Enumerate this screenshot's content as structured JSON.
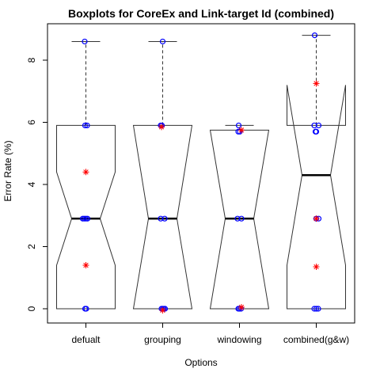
{
  "chart_data": {
    "type": "boxplot",
    "title": "Boxplots for CoreEx and Link-target Id (combined)",
    "xlabel": "Options",
    "ylabel": "Error Rate (%)",
    "ylim": [
      -0.5,
      9.0
    ],
    "yticks": [
      0,
      2,
      4,
      6,
      8
    ],
    "notched": true,
    "grid": false,
    "colors": {
      "box": "#333333",
      "points": "#0000ff",
      "means": "#ff0000"
    },
    "categories": [
      "defualt",
      "grouping",
      "windowing",
      "combined(g&w)"
    ],
    "boxes": [
      {
        "name": "defualt",
        "whisker_low": 0.0,
        "q1": 0.0,
        "median": 2.9,
        "q3": 5.9,
        "whisker_high": 8.6,
        "notch_low": 1.4,
        "notch_high": 4.4
      },
      {
        "name": "grouping",
        "whisker_low": 0.0,
        "q1": 0.0,
        "median": 2.9,
        "q3": 5.9,
        "whisker_high": 8.6,
        "notch_low": 0.0,
        "notch_high": 5.9
      },
      {
        "name": "windowing",
        "whisker_low": 0.0,
        "q1": 0.0,
        "median": 2.9,
        "q3": 5.75,
        "whisker_high": 5.9,
        "notch_low": 0.0,
        "notch_high": 5.75
      },
      {
        "name": "combined(g&w)",
        "whisker_low": 0.0,
        "q1": 0.0,
        "median": 4.3,
        "q3": 5.9,
        "whisker_high": 8.8,
        "notch_low": 1.4,
        "notch_high": 7.2
      }
    ],
    "points": [
      {
        "group": 0,
        "values": [
          8.6,
          5.9,
          5.9,
          2.9,
          2.9,
          2.9,
          2.9,
          0.0,
          0.0
        ],
        "jitter": [
          -0.03,
          -0.02,
          0.03,
          -0.08,
          -0.04,
          0.0,
          0.04,
          -0.02,
          0.01
        ]
      },
      {
        "group": 1,
        "values": [
          8.6,
          5.9,
          5.9,
          2.9,
          2.9,
          0.0,
          0.0,
          0.0,
          0.0
        ],
        "jitter": [
          0.0,
          -0.05,
          -0.02,
          -0.05,
          0.05,
          -0.03,
          0.0,
          0.03,
          0.06
        ]
      },
      {
        "group": 2,
        "values": [
          5.9,
          5.7,
          5.7,
          2.9,
          2.9,
          0.0,
          0.0,
          0.0
        ],
        "jitter": [
          -0.02,
          -0.03,
          0.01,
          -0.05,
          0.05,
          -0.03,
          0.0,
          0.04
        ]
      },
      {
        "group": 3,
        "values": [
          8.8,
          5.9,
          5.9,
          5.7,
          5.7,
          2.9,
          2.9,
          0.0,
          0.0,
          0.0
        ],
        "jitter": [
          -0.04,
          -0.05,
          0.06,
          -0.02,
          0.0,
          0.0,
          0.06,
          -0.05,
          0.0,
          0.05
        ]
      }
    ],
    "means": [
      {
        "group": 0,
        "values": [
          4.4,
          1.4
        ],
        "jitter": [
          0.0,
          0.0
        ]
      },
      {
        "group": 1,
        "values": [
          5.85,
          -0.05
        ],
        "jitter": [
          -0.03,
          0.0
        ]
      },
      {
        "group": 2,
        "values": [
          5.75,
          0.05
        ],
        "jitter": [
          0.05,
          0.05
        ]
      },
      {
        "group": 3,
        "values": [
          7.25,
          2.9,
          1.35
        ],
        "jitter": [
          0.0,
          0.0,
          0.0
        ]
      }
    ]
  }
}
